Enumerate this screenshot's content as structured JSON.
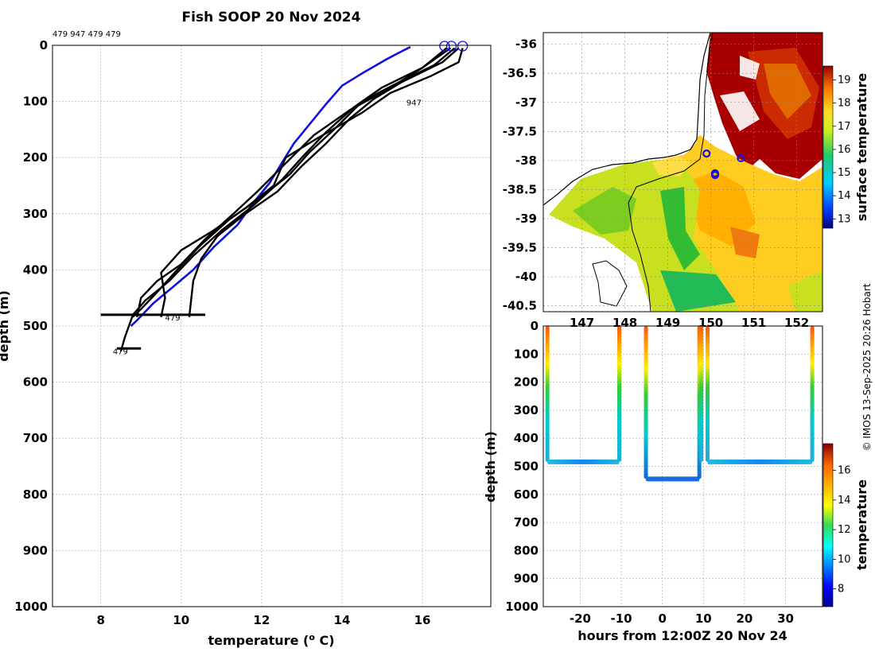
{
  "title": "Fish SOOP 20 Nov 2024",
  "copyright": "© IMOS 13-Sep-2025 20:26 Hobart",
  "colors": {
    "black": "#000000",
    "blue": "#1010dd",
    "grid": "#bbbbbb"
  },
  "chart_data": [
    {
      "type": "line",
      "name": "temperature-depth-profiles",
      "header_ids": "479 947 479 479",
      "xlabel": "temperature (° C)",
      "ylabel": "depth (m)",
      "xlim": [
        6.8,
        17.7
      ],
      "ylim": [
        1000,
        0
      ],
      "xticks": [
        8,
        10,
        12,
        14,
        16
      ],
      "yticks": [
        0,
        100,
        200,
        300,
        400,
        500,
        600,
        700,
        800,
        900,
        1000
      ],
      "profile_labels": [
        {
          "text": "947",
          "x": 15.6,
          "y": 107
        },
        {
          "text": "479",
          "x": 9.6,
          "y": 490
        },
        {
          "text": "479",
          "x": 8.3,
          "y": 550
        }
      ],
      "surface_markers_x": [
        16.55,
        16.72,
        17.0
      ],
      "series": [
        {
          "name": "reference",
          "color": "#1010dd",
          "points": [
            [
              15.7,
              3
            ],
            [
              15.5,
              10
            ],
            [
              15.1,
              25
            ],
            [
              14.5,
              50
            ],
            [
              14.0,
              72
            ],
            [
              13.6,
              105
            ],
            [
              13.2,
              140
            ],
            [
              12.8,
              175
            ],
            [
              12.5,
              210
            ],
            [
              12.2,
              245
            ],
            [
              11.8,
              280
            ],
            [
              11.4,
              320
            ],
            [
              10.8,
              360
            ],
            [
              10.3,
              400
            ],
            [
              9.8,
              430
            ],
            [
              9.3,
              460
            ],
            [
              8.9,
              490
            ],
            [
              8.75,
              500
            ]
          ]
        },
        {
          "name": "p1",
          "color": "#000000",
          "points": [
            [
              16.6,
              5
            ],
            [
              16.0,
              40
            ],
            [
              15.0,
              75
            ],
            [
              14.3,
              110
            ],
            [
              13.6,
              155
            ],
            [
              13.0,
              200
            ],
            [
              12.5,
              240
            ],
            [
              11.8,
              285
            ],
            [
              11.0,
              330
            ],
            [
              10.3,
              375
            ],
            [
              9.7,
              420
            ],
            [
              9.1,
              455
            ],
            [
              8.8,
              480
            ],
            [
              8.6,
              520
            ],
            [
              8.5,
              545
            ]
          ]
        },
        {
          "name": "p2",
          "color": "#000000",
          "points": [
            [
              16.8,
              5
            ],
            [
              16.3,
              35
            ],
            [
              15.3,
              70
            ],
            [
              14.5,
              100
            ],
            [
              13.8,
              150
            ],
            [
              13.2,
              190
            ],
            [
              12.7,
              230
            ],
            [
              12.0,
              270
            ],
            [
              11.2,
              310
            ],
            [
              10.5,
              355
            ],
            [
              9.9,
              400
            ],
            [
              9.4,
              440
            ],
            [
              9.0,
              470
            ],
            [
              8.8,
              484
            ]
          ]
        },
        {
          "name": "p3",
          "color": "#000000",
          "points": [
            [
              16.9,
              5
            ],
            [
              16.5,
              30
            ],
            [
              15.5,
              65
            ],
            [
              14.8,
              95
            ],
            [
              14.2,
              130
            ],
            [
              13.6,
              175
            ],
            [
              13.0,
              215
            ],
            [
              12.4,
              260
            ],
            [
              11.6,
              300
            ],
            [
              10.9,
              340
            ],
            [
              10.5,
              380
            ],
            [
              10.3,
              420
            ],
            [
              10.2,
              484
            ]
          ]
        },
        {
          "name": "p4",
          "color": "#000000",
          "points": [
            [
              17.0,
              5
            ],
            [
              16.9,
              30
            ],
            [
              16.2,
              55
            ],
            [
              15.2,
              85
            ],
            [
              14.5,
              120
            ],
            [
              13.4,
              165
            ],
            [
              12.6,
              200
            ],
            [
              12.3,
              250
            ],
            [
              11.6,
              290
            ],
            [
              10.8,
              330
            ],
            [
              10.0,
              365
            ],
            [
              9.5,
              405
            ],
            [
              9.6,
              450
            ],
            [
              9.5,
              484
            ]
          ]
        },
        {
          "name": "p5",
          "color": "#000000",
          "points": [
            [
              16.7,
              5
            ],
            [
              16.0,
              40
            ],
            [
              15.1,
              80
            ],
            [
              14.2,
              115
            ],
            [
              13.3,
              160
            ],
            [
              12.6,
              210
            ],
            [
              11.9,
              260
            ],
            [
              11.3,
              300
            ],
            [
              10.6,
              345
            ],
            [
              10.0,
              390
            ],
            [
              9.4,
              420
            ],
            [
              9.0,
              450
            ],
            [
              8.9,
              484
            ]
          ]
        }
      ],
      "depth_bars": [
        {
          "x0": 8.0,
          "x1": 10.6,
          "y": 480
        },
        {
          "x0": 8.4,
          "x1": 9.0,
          "y": 540
        }
      ]
    },
    {
      "type": "heatmap",
      "name": "surface-temperature-map",
      "xticks": [
        147,
        148,
        149,
        150,
        151,
        152
      ],
      "yticks": [
        -36,
        -36.5,
        -37,
        -37.5,
        -38,
        -38.5,
        -39,
        -39.5,
        -40,
        -40.5
      ],
      "xlim": [
        146.1,
        152.6
      ],
      "ylim": [
        -40.6,
        -35.8
      ],
      "colorbar_label": "surface temperature",
      "colorbar_range": [
        12.6,
        19.6
      ],
      "colorbar_ticks": [
        13,
        14,
        15,
        16,
        17,
        18,
        19
      ],
      "stations": [
        [
          149.9,
          -37.88
        ],
        [
          150.1,
          -38.22
        ],
        [
          150.7,
          -37.96
        ],
        [
          150.1,
          -38.25
        ]
      ]
    },
    {
      "type": "line",
      "name": "depth-vs-time",
      "xlabel": "hours from 12:00Z 20 Nov 24",
      "ylabel": "depth (m)",
      "xlim": [
        -29,
        39
      ],
      "ylim": [
        1000,
        0
      ],
      "xticks": [
        -20,
        -10,
        0,
        10,
        20,
        30
      ],
      "yticks": [
        0,
        100,
        200,
        300,
        400,
        500,
        600,
        700,
        800,
        900,
        1000
      ],
      "colorbar_label": "temperature",
      "colorbar_range": [
        6.8,
        17.8
      ],
      "colorbar_ticks": [
        8,
        10,
        12,
        14,
        16
      ],
      "casts": [
        {
          "t0": -28.0,
          "t1": -10.5,
          "depth": 484,
          "t_top": 16.6,
          "t_bot": 9.6
        },
        {
          "t0": -4.0,
          "t1": 9.0,
          "depth": 545,
          "t_top": 16.8,
          "t_bot": 8.6
        },
        {
          "t0": 9.5,
          "t1": 10.0,
          "depth": 484,
          "t_top": 17.0,
          "t_bot": 9.8
        },
        {
          "t0": 11.0,
          "t1": 36.5,
          "depth": 484,
          "t_top": 16.7,
          "t_bot": 9.4
        }
      ]
    }
  ]
}
